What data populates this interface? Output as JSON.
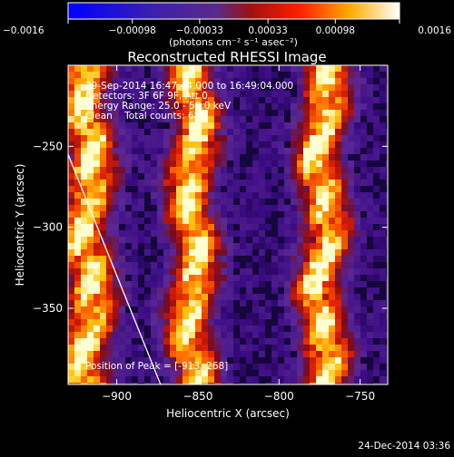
{
  "chart_data": {
    "type": "heatmap",
    "title": "Reconstructed RHESSI Image",
    "xlabel": "Heliocentric X (arcsec)",
    "ylabel": "Heliocentric Y (arcsec)",
    "xlim": [
      -930,
      -733
    ],
    "ylim": [
      -397,
      -200
    ],
    "x_ticks": [
      {
        "value": -900,
        "label": "−900"
      },
      {
        "value": -850,
        "label": "−850"
      },
      {
        "value": -800,
        "label": "−800"
      },
      {
        "value": -750,
        "label": "−750"
      }
    ],
    "y_ticks": [
      {
        "value": -250,
        "label": "−250"
      },
      {
        "value": -300,
        "label": "−300"
      },
      {
        "value": -350,
        "label": "−350"
      }
    ],
    "colorbar": {
      "range": [
        -0.0016,
        0.0016
      ],
      "ticks": [
        {
          "value": -0.0016,
          "label": "−0.0016"
        },
        {
          "value": -0.00098,
          "label": "−0.00098"
        },
        {
          "value": -0.00033,
          "label": "−0.00033"
        },
        {
          "value": 0.00033,
          "label": "0.00033"
        },
        {
          "value": 0.00098,
          "label": "0.00098"
        },
        {
          "value": 0.0016,
          "label": "0.0016"
        }
      ],
      "unit_label": "(photons cm⁻² s⁻¹ asec⁻²)"
    },
    "annotations": [
      "29-Sep-2014 16:47:44.000 to 16:49:04.000",
      "Detectors: 3F 6F 9F, Att 0",
      "Energy Range: 25.0 - 50.0 keV",
      "Clean    Total counts: 680."
    ],
    "peak_label": "Position of Peak = [-913,-268]",
    "peak_position": [
      -913,
      -268
    ],
    "stripes_center_x": [
      -918,
      -853,
      -773
    ],
    "limb_line": [
      [
        -930,
        -255
      ],
      [
        -873,
        -397
      ]
    ],
    "timestamp": "24-Dec-2014 03:36"
  }
}
